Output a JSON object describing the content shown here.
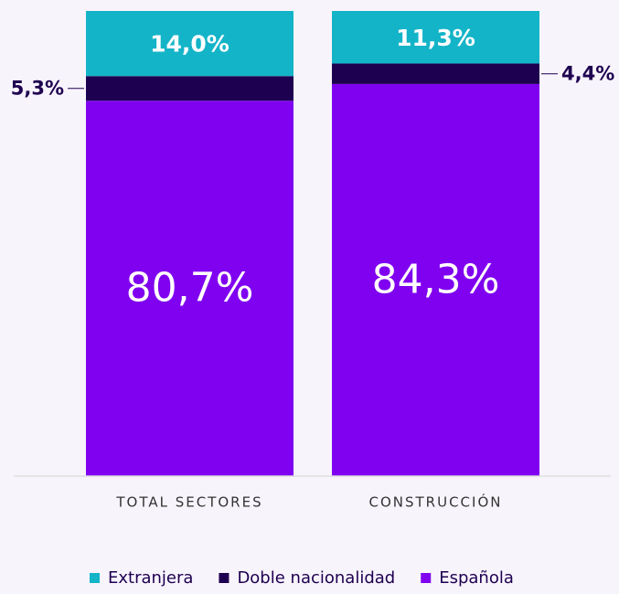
{
  "chart_data": {
    "type": "stacked_bar",
    "categories": [
      "TOTAL SECTORES",
      "CONSTRUCCIÓN"
    ],
    "series": [
      {
        "name": "Extranjera",
        "color": "#14b4c8",
        "values": [
          14.0,
          11.3
        ],
        "value_labels": [
          "14,0%",
          "11,3%"
        ]
      },
      {
        "name": "Doble nacionalidad",
        "color": "#1e0050",
        "values": [
          5.3,
          4.4
        ],
        "value_labels": [
          "5,3%",
          "4,4%"
        ]
      },
      {
        "name": "Española",
        "color": "#8000f0",
        "values": [
          80.7,
          84.3
        ],
        "value_labels": [
          "80,7%",
          "84,3%"
        ]
      }
    ],
    "ylim": [
      0,
      100
    ]
  }
}
